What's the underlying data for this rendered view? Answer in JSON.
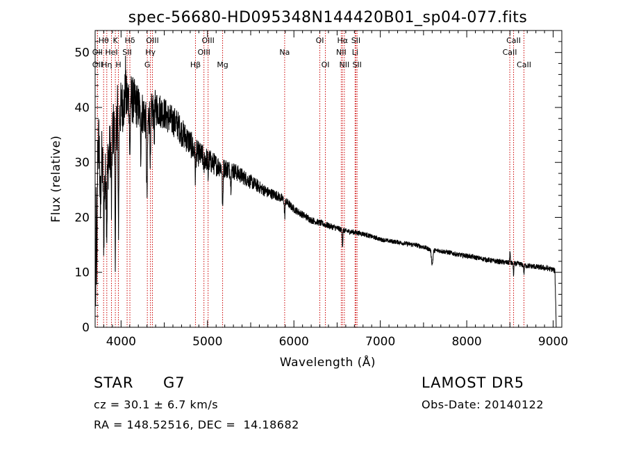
{
  "footer": {
    "object_type": "STAR",
    "subclass": "G7",
    "redshift_line": "cz = 30.1 ± 6.7 km/s",
    "coords_line": "RA = 148.52516, DEC =  14.18682",
    "survey": "LAMOST DR5",
    "obs_date_line": "Obs-Date: 20140122"
  },
  "chart_data": {
    "type": "line",
    "title": "spec-56680-HD095348N144420B01_sp04-077.fits",
    "xlabel": "Wavelength (Å)",
    "ylabel": "Flux (relative)",
    "xlim": [
      3700,
      9100
    ],
    "ylim": [
      0,
      54
    ],
    "xticks": [
      4000,
      5000,
      6000,
      7000,
      8000,
      9000
    ],
    "yticks": [
      0,
      10,
      20,
      30,
      40,
      50
    ],
    "grid": false,
    "line_color": "#000000",
    "marker_color": "#cc0000",
    "continuum": [
      [
        3705,
        2
      ],
      [
        3712,
        25
      ],
      [
        3730,
        33
      ],
      [
        3750,
        34
      ],
      [
        3780,
        30
      ],
      [
        3800,
        26
      ],
      [
        3830,
        27
      ],
      [
        3850,
        30
      ],
      [
        3880,
        33
      ],
      [
        3910,
        36
      ],
      [
        3940,
        37
      ],
      [
        3970,
        38
      ],
      [
        4000,
        40
      ],
      [
        4050,
        41
      ],
      [
        4100,
        42
      ],
      [
        4150,
        41
      ],
      [
        4200,
        40
      ],
      [
        4250,
        39
      ],
      [
        4300,
        38
      ],
      [
        4350,
        39
      ],
      [
        4400,
        40
      ],
      [
        4450,
        39.5
      ],
      [
        4500,
        39
      ],
      [
        4550,
        38
      ],
      [
        4600,
        37.5
      ],
      [
        4650,
        37
      ],
      [
        4700,
        35.5
      ],
      [
        4750,
        34.5
      ],
      [
        4800,
        33.5
      ],
      [
        4850,
        32
      ],
      [
        4900,
        31.5
      ],
      [
        4950,
        31
      ],
      [
        5000,
        30.5
      ],
      [
        5050,
        30
      ],
      [
        5100,
        29.5
      ],
      [
        5200,
        29
      ],
      [
        5300,
        28.5
      ],
      [
        5400,
        27.5
      ],
      [
        5500,
        26.5
      ],
      [
        5600,
        25.5
      ],
      [
        5700,
        24.5
      ],
      [
        5800,
        24
      ],
      [
        5900,
        23
      ],
      [
        6000,
        21.5
      ],
      [
        6100,
        20.5
      ],
      [
        6200,
        19.5
      ],
      [
        6300,
        19
      ],
      [
        6400,
        18.5
      ],
      [
        6500,
        18
      ],
      [
        6600,
        17.5
      ],
      [
        6700,
        17.3
      ],
      [
        6800,
        17
      ],
      [
        6900,
        16.5
      ],
      [
        7000,
        16
      ],
      [
        7100,
        15.7
      ],
      [
        7200,
        15.5
      ],
      [
        7300,
        15.2
      ],
      [
        7400,
        15
      ],
      [
        7500,
        14.6
      ],
      [
        7600,
        14
      ],
      [
        7700,
        13.9
      ],
      [
        7800,
        13.6
      ],
      [
        7900,
        13.2
      ],
      [
        8000,
        13
      ],
      [
        8100,
        12.7
      ],
      [
        8200,
        12.4
      ],
      [
        8300,
        12.1
      ],
      [
        8400,
        11.9
      ],
      [
        8500,
        11.7
      ],
      [
        8600,
        11.5
      ],
      [
        8700,
        11.2
      ],
      [
        8800,
        11
      ],
      [
        8900,
        10.8
      ],
      [
        9000,
        10.5
      ],
      [
        9020,
        10.2
      ],
      [
        9030,
        4
      ],
      [
        9035,
        0
      ]
    ],
    "absorption_features": [
      {
        "x": 3720,
        "depth": 20,
        "width": 6
      },
      {
        "x": 3760,
        "depth": 12,
        "width": 8
      },
      {
        "x": 3800,
        "depth": 9,
        "width": 6
      },
      {
        "x": 3835,
        "depth": 10,
        "width": 5
      },
      {
        "x": 3889,
        "depth": 12,
        "width": 6
      },
      {
        "x": 3934,
        "depth": 22,
        "width": 7
      },
      {
        "x": 3969,
        "depth": 20,
        "width": 7
      },
      {
        "x": 4102,
        "depth": 12,
        "width": 6
      },
      {
        "x": 4227,
        "depth": 8,
        "width": 5
      },
      {
        "x": 4300,
        "depth": 14,
        "width": 8
      },
      {
        "x": 4340,
        "depth": 10,
        "width": 5
      },
      {
        "x": 4384,
        "depth": 6,
        "width": 4
      },
      {
        "x": 4861,
        "depth": 5,
        "width": 5
      },
      {
        "x": 4958,
        "depth": 3,
        "width": 4
      },
      {
        "x": 5007,
        "depth": 3,
        "width": 4
      },
      {
        "x": 5175,
        "depth": 8,
        "width": 6
      },
      {
        "x": 5270,
        "depth": 3,
        "width": 5
      },
      {
        "x": 5893,
        "depth": 3,
        "width": 6
      },
      {
        "x": 6563,
        "depth": 3,
        "width": 5
      },
      {
        "x": 7600,
        "depth": 2.5,
        "width": 12
      },
      {
        "x": 8542,
        "depth": 2,
        "width": 5
      },
      {
        "x": 8662,
        "depth": 1.5,
        "width": 5
      }
    ],
    "emission_features": [
      {
        "x": 3960,
        "height": 8,
        "width": 3
      },
      {
        "x": 4050,
        "height": 5,
        "width": 4
      },
      {
        "x": 8500,
        "height": 2,
        "width": 5
      }
    ],
    "noise_amplitude": [
      [
        3700,
        6
      ],
      [
        4000,
        5
      ],
      [
        4500,
        3
      ],
      [
        5000,
        2.2
      ],
      [
        5500,
        1.3
      ],
      [
        6000,
        0.7
      ],
      [
        7000,
        0.4
      ],
      [
        9000,
        0.5
      ]
    ],
    "line_markers": [
      {
        "label": "Hθ",
        "x": 3798,
        "row": 1
      },
      {
        "label": "OII",
        "x": 3727,
        "row": 2
      },
      {
        "label": "Hη",
        "x": 3835,
        "row": 3
      },
      {
        "label": "OII",
        "x": 3727,
        "row": 3
      },
      {
        "label": "K",
        "x": 3934,
        "row": 1
      },
      {
        "label": "HeI",
        "x": 3889,
        "row": 2
      },
      {
        "label": "H",
        "x": 3969,
        "row": 3
      },
      {
        "label": "Hδ",
        "x": 4102,
        "row": 1
      },
      {
        "label": "SII",
        "x": 4070,
        "row": 2
      },
      {
        "label": "OIII",
        "x": 4363,
        "row": 1
      },
      {
        "label": "Hγ",
        "x": 4340,
        "row": 2
      },
      {
        "label": "G",
        "x": 4304,
        "row": 3
      },
      {
        "label": "OIII",
        "x": 5007,
        "row": 1
      },
      {
        "label": "OIII",
        "x": 4959,
        "row": 2
      },
      {
        "label": "Hβ",
        "x": 4861,
        "row": 3
      },
      {
        "label": "Mg",
        "x": 5175,
        "row": 3
      },
      {
        "label": "Na",
        "x": 5893,
        "row": 2
      },
      {
        "label": "OI",
        "x": 6300,
        "row": 1
      },
      {
        "label": "OI",
        "x": 6364,
        "row": 3
      },
      {
        "label": "Hα",
        "x": 6563,
        "row": 1
      },
      {
        "label": "SII",
        "x": 6717,
        "row": 1
      },
      {
        "label": "NII",
        "x": 6548,
        "row": 2
      },
      {
        "label": "Li",
        "x": 6708,
        "row": 2
      },
      {
        "label": "NII",
        "x": 6584,
        "row": 3
      },
      {
        "label": "SII",
        "x": 6731,
        "row": 3
      },
      {
        "label": "CaII",
        "x": 8542,
        "row": 1
      },
      {
        "label": "CaII",
        "x": 8498,
        "row": 2
      },
      {
        "label": "CaII",
        "x": 8662,
        "row": 3
      }
    ]
  }
}
